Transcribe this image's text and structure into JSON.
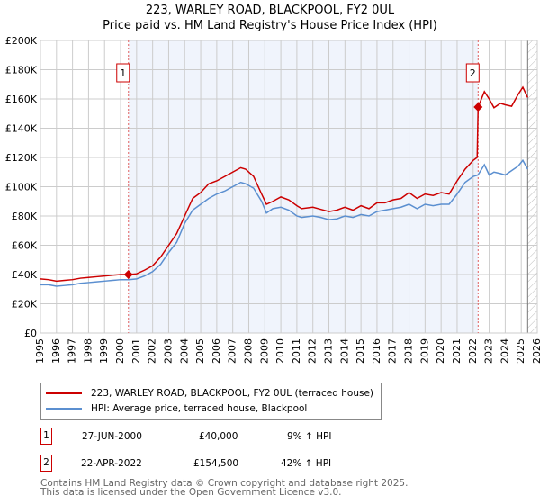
{
  "chart_data": {
    "type": "line",
    "title": "223, WARLEY ROAD, BLACKPOOL, FY2 0UL",
    "subtitle": "Price paid vs. HM Land Registry's House Price Index (HPI)",
    "xlim": [
      1995,
      2026
    ],
    "ylim": [
      0,
      200000
    ],
    "x_ticks": [
      "1995",
      "1996",
      "1997",
      "1998",
      "1999",
      "2000",
      "2001",
      "2002",
      "2003",
      "2004",
      "2005",
      "2006",
      "2007",
      "2008",
      "2009",
      "2010",
      "2011",
      "2012",
      "2013",
      "2014",
      "2015",
      "2016",
      "2017",
      "2018",
      "2019",
      "2020",
      "2021",
      "2022",
      "2023",
      "2024",
      "2025",
      "2026"
    ],
    "y_ticks": [
      {
        "v": 0,
        "label": "£0"
      },
      {
        "v": 20000,
        "label": "£20K"
      },
      {
        "v": 40000,
        "label": "£40K"
      },
      {
        "v": 60000,
        "label": "£60K"
      },
      {
        "v": 80000,
        "label": "£80K"
      },
      {
        "v": 100000,
        "label": "£100K"
      },
      {
        "v": 120000,
        "label": "£120K"
      },
      {
        "v": 140000,
        "label": "£140K"
      },
      {
        "v": 160000,
        "label": "£160K"
      },
      {
        "v": 180000,
        "label": "£180K"
      },
      {
        "v": 200000,
        "label": "£200K"
      }
    ],
    "grid": true,
    "shaded_range": [
      2000.49,
      2022.31
    ],
    "hatched_from": 2025.4,
    "series": [
      {
        "name": "223, WARLEY ROAD, BLACKPOOL, FY2 0UL (terraced house)",
        "color": "#cc0000",
        "x": [
          1995,
          1995.5,
          1996,
          1996.5,
          1997,
          1997.5,
          1998,
          1998.5,
          1999,
          1999.5,
          2000,
          2000.49,
          2001,
          2001.5,
          2002,
          2002.5,
          2003,
          2003.5,
          2004,
          2004.5,
          2005,
          2005.5,
          2006,
          2006.5,
          2007,
          2007.5,
          2007.8,
          2008.3,
          2008.8,
          2009.1,
          2009.5,
          2010,
          2010.5,
          2011,
          2011.3,
          2012,
          2012.5,
          2013,
          2013.5,
          2014,
          2014.5,
          2015,
          2015.5,
          2016,
          2016.5,
          2017,
          2017.5,
          2018,
          2018.5,
          2019,
          2019.5,
          2020,
          2020.5,
          2021,
          2021.5,
          2022,
          2022.25,
          2022.31,
          2022.7,
          2023,
          2023.3,
          2023.7,
          2024,
          2024.4,
          2024.8,
          2025.1,
          2025.4
        ],
        "y": [
          37000,
          36500,
          35500,
          36000,
          36500,
          37500,
          38000,
          38500,
          39000,
          39500,
          40000,
          40000,
          40500,
          43000,
          46000,
          52000,
          60000,
          68000,
          80000,
          92000,
          96000,
          102000,
          104000,
          107000,
          110000,
          113000,
          112000,
          107000,
          95000,
          88000,
          90000,
          93000,
          91000,
          87000,
          85000,
          86000,
          84500,
          83000,
          84000,
          86000,
          84000,
          87000,
          85000,
          89000,
          89000,
          91000,
          92000,
          96000,
          92000,
          95000,
          94000,
          96000,
          95000,
          104000,
          112000,
          118000,
          120000,
          154500,
          165000,
          160000,
          154000,
          157000,
          156000,
          155000,
          163000,
          168000,
          161000
        ]
      },
      {
        "name": "HPI: Average price, terraced house, Blackpool",
        "color": "#5b8fd0",
        "x": [
          1995,
          1995.5,
          1996,
          1996.5,
          1997,
          1997.5,
          1998,
          1998.5,
          1999,
          1999.5,
          2000,
          2000.5,
          2001,
          2001.5,
          2002,
          2002.5,
          2003,
          2003.5,
          2004,
          2004.5,
          2005,
          2005.5,
          2006,
          2006.5,
          2007,
          2007.5,
          2007.8,
          2008.3,
          2008.8,
          2009.1,
          2009.5,
          2010,
          2010.5,
          2011,
          2011.3,
          2012,
          2012.5,
          2013,
          2013.5,
          2014,
          2014.5,
          2015,
          2015.5,
          2016,
          2016.5,
          2017,
          2017.5,
          2018,
          2018.5,
          2019,
          2019.5,
          2020,
          2020.5,
          2021,
          2021.5,
          2022,
          2022.3,
          2022.7,
          2023,
          2023.3,
          2023.7,
          2024,
          2024.4,
          2024.8,
          2025.1,
          2025.4
        ],
        "y": [
          33000,
          33000,
          32000,
          32500,
          33000,
          34000,
          34500,
          35000,
          35500,
          36000,
          36500,
          36500,
          37000,
          39000,
          42000,
          47000,
          55000,
          62000,
          75000,
          84000,
          88000,
          92000,
          95000,
          97000,
          100000,
          103000,
          102000,
          99000,
          90000,
          82000,
          85000,
          86000,
          84000,
          80000,
          79000,
          80000,
          79000,
          77500,
          78000,
          80000,
          79000,
          81000,
          80000,
          83000,
          84000,
          85000,
          86000,
          88000,
          85000,
          88000,
          87000,
          88000,
          88000,
          95000,
          103000,
          107000,
          108000,
          115000,
          108000,
          110000,
          109000,
          108000,
          111000,
          114000,
          118000,
          112000
        ]
      }
    ],
    "annotations": [
      {
        "label": "1",
        "x": 2000.49,
        "y": 40000
      },
      {
        "label": "2",
        "x": 2022.31,
        "y": 154500
      }
    ]
  },
  "legend": [
    {
      "label": "223, WARLEY ROAD, BLACKPOOL, FY2 0UL (terraced house)",
      "color": "#cc0000"
    },
    {
      "label": "HPI: Average price, terraced house, Blackpool",
      "color": "#5b8fd0"
    }
  ],
  "transactions": [
    {
      "num": "1",
      "date": "27-JUN-2000",
      "price": "£40,000",
      "hpi": "9% ↑ HPI"
    },
    {
      "num": "2",
      "date": "22-APR-2022",
      "price": "£154,500",
      "hpi": "42% ↑ HPI"
    }
  ],
  "footer": [
    "Contains HM Land Registry data © Crown copyright and database right 2025.",
    "This data is licensed under the Open Government Licence v3.0."
  ]
}
